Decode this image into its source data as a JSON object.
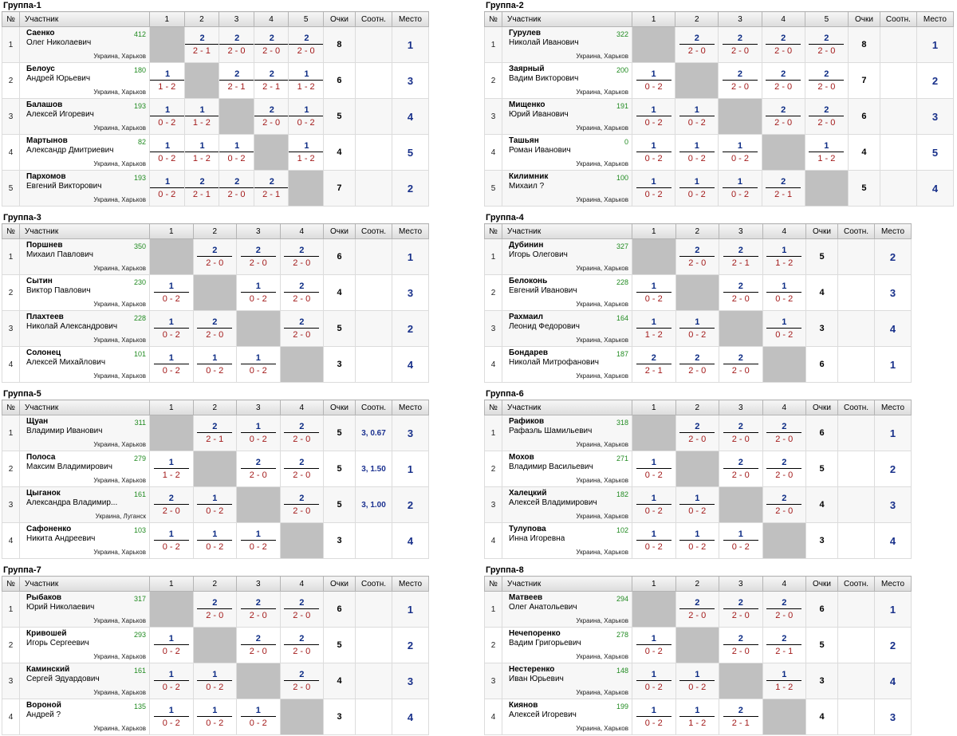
{
  "headers": {
    "num": "№",
    "participant": "Участник",
    "points": "Очки",
    "ratio": "Соотн.",
    "place": "Место"
  },
  "groups": [
    {
      "title": "Группа-1",
      "rows": [
        {
          "name": "Саенко",
          "full": "Олег Николаевич",
          "rating": "412",
          "city": "Украина, Харьков",
          "results": [
            null,
            [
              "2",
              "2 - 1"
            ],
            [
              "2",
              "2 - 0"
            ],
            [
              "2",
              "2 - 0"
            ],
            [
              "2",
              "2 - 0"
            ]
          ],
          "points": "8",
          "ratio": "",
          "place": "1"
        },
        {
          "name": "Белоус",
          "full": "Андрей Юрьевич",
          "rating": "180",
          "city": "Украина, Харьков",
          "results": [
            [
              "1",
              "1 - 2"
            ],
            null,
            [
              "2",
              "2 - 1"
            ],
            [
              "2",
              "2 - 1"
            ],
            [
              "1",
              "1 - 2"
            ]
          ],
          "points": "6",
          "ratio": "",
          "place": "3"
        },
        {
          "name": "Балашов",
          "full": "Алексей Игоревич",
          "rating": "193",
          "city": "Украина, Харьков",
          "results": [
            [
              "1",
              "0 - 2"
            ],
            [
              "1",
              "1 - 2"
            ],
            null,
            [
              "2",
              "2 - 0"
            ],
            [
              "1",
              "0 - 2"
            ]
          ],
          "points": "5",
          "ratio": "",
          "place": "4"
        },
        {
          "name": "Мартынов",
          "full": "Александр Дмитриевич",
          "rating": "82",
          "city": "Украина, Харьков",
          "results": [
            [
              "1",
              "0 - 2"
            ],
            [
              "1",
              "1 - 2"
            ],
            [
              "1",
              "0 - 2"
            ],
            null,
            [
              "1",
              "1 - 2"
            ]
          ],
          "points": "4",
          "ratio": "",
          "place": "5"
        },
        {
          "name": "Пархомов",
          "full": "Евгений Викторович",
          "rating": "193",
          "city": "Украина, Харьков",
          "results": [
            [
              "1",
              "0 - 2"
            ],
            [
              "2",
              "2 - 1"
            ],
            [
              "2",
              "2 - 0"
            ],
            [
              "2",
              "2 - 1"
            ],
            null
          ],
          "points": "7",
          "ratio": "",
          "place": "2"
        }
      ]
    },
    {
      "title": "Группа-2",
      "rows": [
        {
          "name": "Гурулев",
          "full": "Николай Иванович",
          "rating": "322",
          "city": "Украина, Харьков",
          "results": [
            null,
            [
              "2",
              "2 - 0"
            ],
            [
              "2",
              "2 - 0"
            ],
            [
              "2",
              "2 - 0"
            ],
            [
              "2",
              "2 - 0"
            ]
          ],
          "points": "8",
          "ratio": "",
          "place": "1"
        },
        {
          "name": "Заярный",
          "full": "Вадим Викторович",
          "rating": "200",
          "city": "Украина, Харьков",
          "results": [
            [
              "1",
              "0 - 2"
            ],
            null,
            [
              "2",
              "2 - 0"
            ],
            [
              "2",
              "2 - 0"
            ],
            [
              "2",
              "2 - 0"
            ]
          ],
          "points": "7",
          "ratio": "",
          "place": "2"
        },
        {
          "name": "Мищенко",
          "full": "Юрий Иванович",
          "rating": "191",
          "city": "Украина, Харьков",
          "results": [
            [
              "1",
              "0 - 2"
            ],
            [
              "1",
              "0 - 2"
            ],
            null,
            [
              "2",
              "2 - 0"
            ],
            [
              "2",
              "2 - 0"
            ]
          ],
          "points": "6",
          "ratio": "",
          "place": "3"
        },
        {
          "name": "Ташьян",
          "full": "Роман Иванович",
          "rating": "0",
          "city": "Украина, Харьков",
          "results": [
            [
              "1",
              "0 - 2"
            ],
            [
              "1",
              "0 - 2"
            ],
            [
              "1",
              "0 - 2"
            ],
            null,
            [
              "1",
              "1 - 2"
            ]
          ],
          "points": "4",
          "ratio": "",
          "place": "5"
        },
        {
          "name": "Килимник",
          "full": "Михаил ?",
          "rating": "100",
          "city": "Украина, Харьков",
          "results": [
            [
              "1",
              "0 - 2"
            ],
            [
              "1",
              "0 - 2"
            ],
            [
              "1",
              "0 - 2"
            ],
            [
              "2",
              "2 - 1"
            ],
            null
          ],
          "points": "5",
          "ratio": "",
          "place": "4"
        }
      ]
    },
    {
      "title": "Группа-3",
      "rows": [
        {
          "name": "Поршнев",
          "full": "Михаил Павлович",
          "rating": "350",
          "city": "Украина, Харьков",
          "results": [
            null,
            [
              "2",
              "2 - 0"
            ],
            [
              "2",
              "2 - 0"
            ],
            [
              "2",
              "2 - 0"
            ]
          ],
          "points": "6",
          "ratio": "",
          "place": "1"
        },
        {
          "name": "Сытин",
          "full": "Виктор Павлович",
          "rating": "230",
          "city": "Украина, Харьков",
          "results": [
            [
              "1",
              "0 - 2"
            ],
            null,
            [
              "1",
              "0 - 2"
            ],
            [
              "2",
              "2 - 0"
            ]
          ],
          "points": "4",
          "ratio": "",
          "place": "3"
        },
        {
          "name": "Плахтеев",
          "full": "Николай Александрович",
          "rating": "228",
          "city": "Украина, Харьков",
          "results": [
            [
              "1",
              "0 - 2"
            ],
            [
              "2",
              "2 - 0"
            ],
            null,
            [
              "2",
              "2 - 0"
            ]
          ],
          "points": "5",
          "ratio": "",
          "place": "2"
        },
        {
          "name": "Солонец",
          "full": "Алексей Михайлович",
          "rating": "101",
          "city": "Украина, Харьков",
          "results": [
            [
              "1",
              "0 - 2"
            ],
            [
              "1",
              "0 - 2"
            ],
            [
              "1",
              "0 - 2"
            ],
            null
          ],
          "points": "3",
          "ratio": "",
          "place": "4"
        }
      ]
    },
    {
      "title": "Группа-4",
      "rows": [
        {
          "name": "Дубинин",
          "full": "Игорь Олегович",
          "rating": "327",
          "city": "Украина, Харьков",
          "results": [
            null,
            [
              "2",
              "2 - 0"
            ],
            [
              "2",
              "2 - 1"
            ],
            [
              "1",
              "1 - 2"
            ]
          ],
          "points": "5",
          "ratio": "",
          "place": "2"
        },
        {
          "name": "Белоконь",
          "full": "Евгений Иванович",
          "rating": "228",
          "city": "Украина, Харьков",
          "results": [
            [
              "1",
              "0 - 2"
            ],
            null,
            [
              "2",
              "2 - 0"
            ],
            [
              "1",
              "0 - 2"
            ]
          ],
          "points": "4",
          "ratio": "",
          "place": "3"
        },
        {
          "name": "Рахмаил",
          "full": "Леонид Федорович",
          "rating": "164",
          "city": "Украина, Харьков",
          "results": [
            [
              "1",
              "1 - 2"
            ],
            [
              "1",
              "0 - 2"
            ],
            null,
            [
              "1",
              "0 - 2"
            ]
          ],
          "points": "3",
          "ratio": "",
          "place": "4"
        },
        {
          "name": "Бондарев",
          "full": "Николай Митрофанович",
          "rating": "187",
          "city": "Украина, Харьков",
          "results": [
            [
              "2",
              "2 - 1"
            ],
            [
              "2",
              "2 - 0"
            ],
            [
              "2",
              "2 - 0"
            ],
            null
          ],
          "points": "6",
          "ratio": "",
          "place": "1"
        }
      ]
    },
    {
      "title": "Группа-5",
      "rows": [
        {
          "name": "Щуан",
          "full": "Владимир Иванович",
          "rating": "311",
          "city": "Украина, Харьков",
          "results": [
            null,
            [
              "2",
              "2 - 1"
            ],
            [
              "1",
              "0 - 2"
            ],
            [
              "2",
              "2 - 0"
            ]
          ],
          "points": "5",
          "ratio": "3, 0.67",
          "place": "3"
        },
        {
          "name": "Полоса",
          "full": "Максим Владимирович",
          "rating": "279",
          "city": "Украина, Харьков",
          "results": [
            [
              "1",
              "1 - 2"
            ],
            null,
            [
              "2",
              "2 - 0"
            ],
            [
              "2",
              "2 - 0"
            ]
          ],
          "points": "5",
          "ratio": "3, 1.50",
          "place": "1"
        },
        {
          "name": "Цыганок",
          "full": "Александра Владимир...",
          "rating": "161",
          "city": "Украина, Луганск",
          "results": [
            [
              "2",
              "2 - 0"
            ],
            [
              "1",
              "0 - 2"
            ],
            null,
            [
              "2",
              "2 - 0"
            ]
          ],
          "points": "5",
          "ratio": "3, 1.00",
          "place": "2"
        },
        {
          "name": "Сафоненко",
          "full": "Никита Андреевич",
          "rating": "103",
          "city": "Украина, Харьков",
          "results": [
            [
              "1",
              "0 - 2"
            ],
            [
              "1",
              "0 - 2"
            ],
            [
              "1",
              "0 - 2"
            ],
            null
          ],
          "points": "3",
          "ratio": "",
          "place": "4"
        }
      ]
    },
    {
      "title": "Группа-6",
      "rows": [
        {
          "name": "Рафиков",
          "full": "Рафаэль Шамильевич",
          "rating": "318",
          "city": "Украина, Харьков",
          "results": [
            null,
            [
              "2",
              "2 - 0"
            ],
            [
              "2",
              "2 - 0"
            ],
            [
              "2",
              "2 - 0"
            ]
          ],
          "points": "6",
          "ratio": "",
          "place": "1"
        },
        {
          "name": "Мохов",
          "full": "Владимир Васильевич",
          "rating": "271",
          "city": "Украина, Харьков",
          "results": [
            [
              "1",
              "0 - 2"
            ],
            null,
            [
              "2",
              "2 - 0"
            ],
            [
              "2",
              "2 - 0"
            ]
          ],
          "points": "5",
          "ratio": "",
          "place": "2"
        },
        {
          "name": "Халецкий",
          "full": "Алексей Владимирович",
          "rating": "182",
          "city": "Украина, Харьков",
          "results": [
            [
              "1",
              "0 - 2"
            ],
            [
              "1",
              "0 - 2"
            ],
            null,
            [
              "2",
              "2 - 0"
            ]
          ],
          "points": "4",
          "ratio": "",
          "place": "3"
        },
        {
          "name": "Тулупова",
          "full": "Инна Игоревна",
          "rating": "102",
          "city": "Украина, Харьков",
          "results": [
            [
              "1",
              "0 - 2"
            ],
            [
              "1",
              "0 - 2"
            ],
            [
              "1",
              "0 - 2"
            ],
            null
          ],
          "points": "3",
          "ratio": "",
          "place": "4"
        }
      ]
    },
    {
      "title": "Группа-7",
      "rows": [
        {
          "name": "Рыбаков",
          "full": "Юрий Николаевич",
          "rating": "317",
          "city": "Украина, Харьков",
          "results": [
            null,
            [
              "2",
              "2 - 0"
            ],
            [
              "2",
              "2 - 0"
            ],
            [
              "2",
              "2 - 0"
            ]
          ],
          "points": "6",
          "ratio": "",
          "place": "1"
        },
        {
          "name": "Кривошей",
          "full": "Игорь Сергеевич",
          "rating": "293",
          "city": "Украина, Харьков",
          "results": [
            [
              "1",
              "0 - 2"
            ],
            null,
            [
              "2",
              "2 - 0"
            ],
            [
              "2",
              "2 - 0"
            ]
          ],
          "points": "5",
          "ratio": "",
          "place": "2"
        },
        {
          "name": "Каминский",
          "full": "Сергей Эдуардович",
          "rating": "161",
          "city": "Украина, Харьков",
          "results": [
            [
              "1",
              "0 - 2"
            ],
            [
              "1",
              "0 - 2"
            ],
            null,
            [
              "2",
              "2 - 0"
            ]
          ],
          "points": "4",
          "ratio": "",
          "place": "3"
        },
        {
          "name": "Вороной",
          "full": "Андрей ?",
          "rating": "135",
          "city": "Украина, Харьков",
          "results": [
            [
              "1",
              "0 - 2"
            ],
            [
              "1",
              "0 - 2"
            ],
            [
              "1",
              "0 - 2"
            ],
            null
          ],
          "points": "3",
          "ratio": "",
          "place": "4"
        }
      ]
    },
    {
      "title": "Группа-8",
      "rows": [
        {
          "name": "Матвеев",
          "full": "Олег Анатольевич",
          "rating": "294",
          "city": "Украина, Харьков",
          "results": [
            null,
            [
              "2",
              "2 - 0"
            ],
            [
              "2",
              "2 - 0"
            ],
            [
              "2",
              "2 - 0"
            ]
          ],
          "points": "6",
          "ratio": "",
          "place": "1"
        },
        {
          "name": "Нечепоренко",
          "full": "Вадим Григорьевич",
          "rating": "278",
          "city": "Украина, Харьков",
          "results": [
            [
              "1",
              "0 - 2"
            ],
            null,
            [
              "2",
              "2 - 0"
            ],
            [
              "2",
              "2 - 1"
            ]
          ],
          "points": "5",
          "ratio": "",
          "place": "2"
        },
        {
          "name": "Нестеренко",
          "full": "Иван Юрьевич",
          "rating": "148",
          "city": "Украина, Харьков",
          "results": [
            [
              "1",
              "0 - 2"
            ],
            [
              "1",
              "0 - 2"
            ],
            null,
            [
              "1",
              "1 - 2"
            ]
          ],
          "points": "3",
          "ratio": "",
          "place": "4"
        },
        {
          "name": "Киянов",
          "full": "Алексей Игоревич",
          "rating": "199",
          "city": "Украина, Харьков",
          "results": [
            [
              "1",
              "0 - 2"
            ],
            [
              "1",
              "1 - 2"
            ],
            [
              "2",
              "2 - 1"
            ],
            null
          ],
          "points": "4",
          "ratio": "",
          "place": "3"
        }
      ]
    }
  ]
}
